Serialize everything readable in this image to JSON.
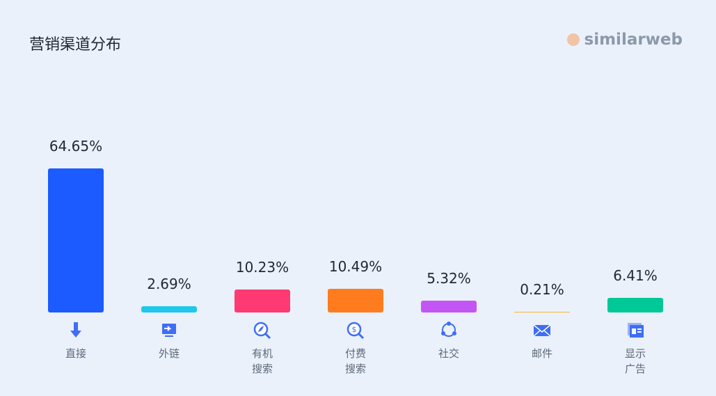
{
  "chart_data": {
    "type": "bar",
    "title": "营销渠道分布",
    "brand": "similarweb",
    "categories": [
      "直接",
      "外链",
      "有机搜索",
      "付费搜索",
      "社交",
      "邮件",
      "显示广告"
    ],
    "values": [
      64.65,
      2.69,
      10.23,
      10.49,
      5.32,
      0.21,
      6.41
    ],
    "value_labels": [
      "64.65%",
      "2.69%",
      "10.23%",
      "10.49%",
      "5.32%",
      "0.21%",
      "6.41%"
    ],
    "colors": [
      "#1b5bff",
      "#1dc8ec",
      "#ff3a72",
      "#ff7c1e",
      "#c455f5",
      "#f7b531",
      "#00c896"
    ]
  }
}
